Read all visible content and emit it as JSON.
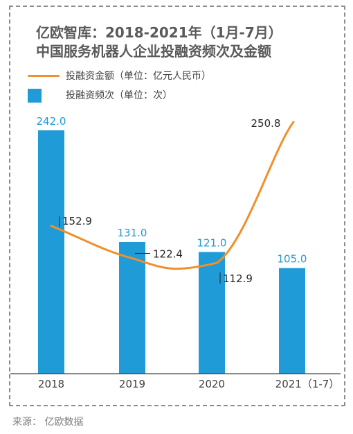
{
  "title_line1": "亿欧智库：2018-2021年（1月-7月）",
  "title_line2": "中国服务机器人企业投融资频次及金额",
  "legend": {
    "amount_label": "投融资金额（单位：亿元人民币）",
    "count_label": "投融资频次（单位：次）"
  },
  "source": "来源： 亿欧数据",
  "colors": {
    "bar": "#1f9bd7",
    "line": "#f0902a",
    "bar_label": "#1f9bd7",
    "line_label": "#262626"
  },
  "chart_data": {
    "type": "bar+line",
    "categories": [
      "2018",
      "2019",
      "2020",
      "2021（1-7）"
    ],
    "series": [
      {
        "name": "投融资频次（单位：次）",
        "type": "bar",
        "values": [
          242.0,
          131.0,
          121.0,
          105.0
        ],
        "labels": [
          "242.0",
          "131.0",
          "121.0",
          "105.0"
        ]
      },
      {
        "name": "投融资金额（单位：亿元人民币）",
        "type": "line",
        "values": [
          152.9,
          122.4,
          112.9,
          250.8
        ],
        "labels": [
          "152.9",
          "122.4",
          "112.9",
          "250.8"
        ]
      }
    ],
    "legend_position": "top-left",
    "grid": false
  }
}
